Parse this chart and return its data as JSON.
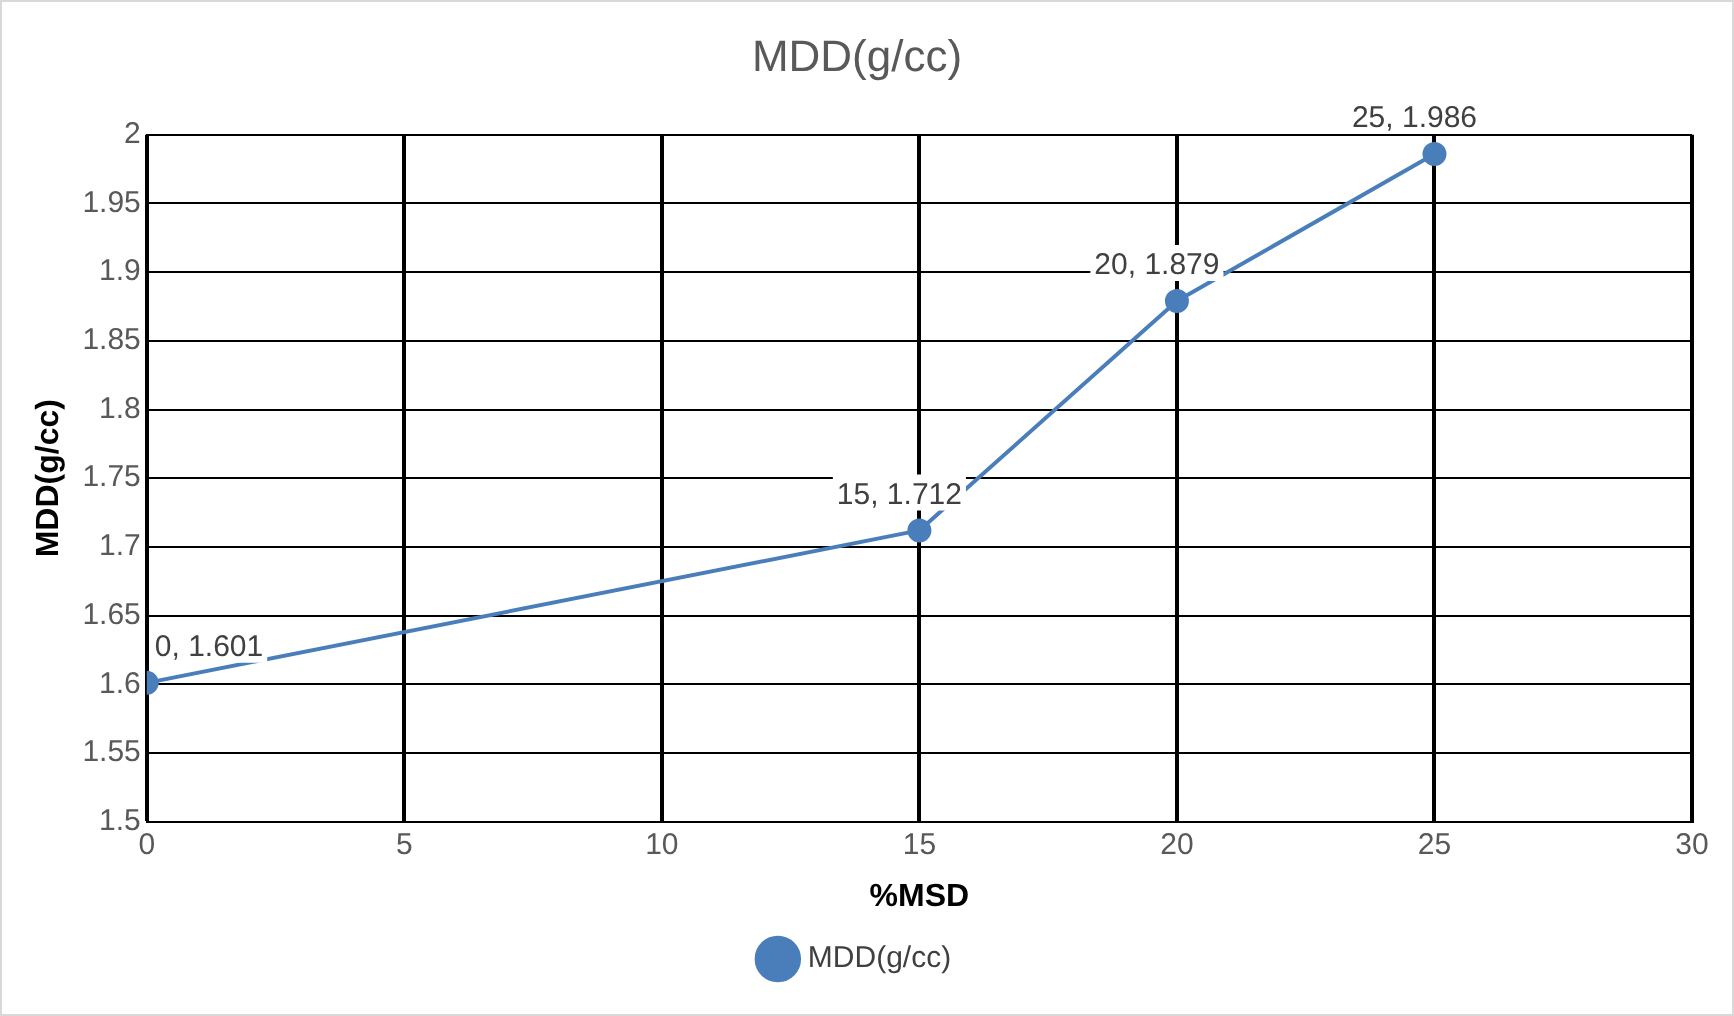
{
  "chart_data": {
    "type": "line",
    "title": "MDD(g/cc)",
    "xlabel": "%MSD",
    "ylabel": "MDD(g/cc)",
    "x": [
      0,
      15,
      20,
      25
    ],
    "series": [
      {
        "name": "MDD(g/cc)",
        "color": "#4a7ebb",
        "values": [
          1.601,
          1.712,
          1.879,
          1.986
        ],
        "value_labels": [
          "0, 1.601",
          "15, 1.712",
          "20, 1.879",
          "25, 1.986"
        ]
      }
    ],
    "xlim": [
      0,
      30
    ],
    "xticks": [
      0,
      5,
      10,
      15,
      20,
      25,
      30
    ],
    "ylim": [
      1.5,
      2
    ],
    "yticks": [
      1.5,
      1.55,
      1.6,
      1.65,
      1.7,
      1.75,
      1.8,
      1.85,
      1.9,
      1.95,
      2
    ],
    "grid": true,
    "legend": "bottom",
    "marker": "circle",
    "line_style": "solid"
  }
}
